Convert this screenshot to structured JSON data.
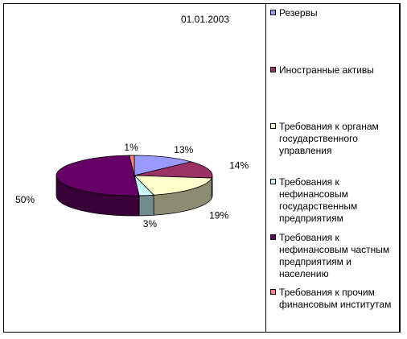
{
  "chart_data": {
    "type": "pie",
    "title": "01.01.2003",
    "legend_position": "right",
    "categories": [
      "Резервы",
      "Иностранные активы",
      "Требования к органам государственного управления",
      "Требования к нефинансовым государственным предприятиям",
      "Требования к нефинансовым частным предприятиям и населению",
      "Требования к прочим финансовым институтам"
    ],
    "values": [
      13,
      14,
      19,
      3,
      50,
      1
    ],
    "value_labels": [
      "13%",
      "14%",
      "19%",
      "3%",
      "50%",
      "1%"
    ],
    "colors": [
      "#9999ff",
      "#993366",
      "#ffffcc",
      "#ccffff",
      "#660066",
      "#ff8080"
    ]
  }
}
